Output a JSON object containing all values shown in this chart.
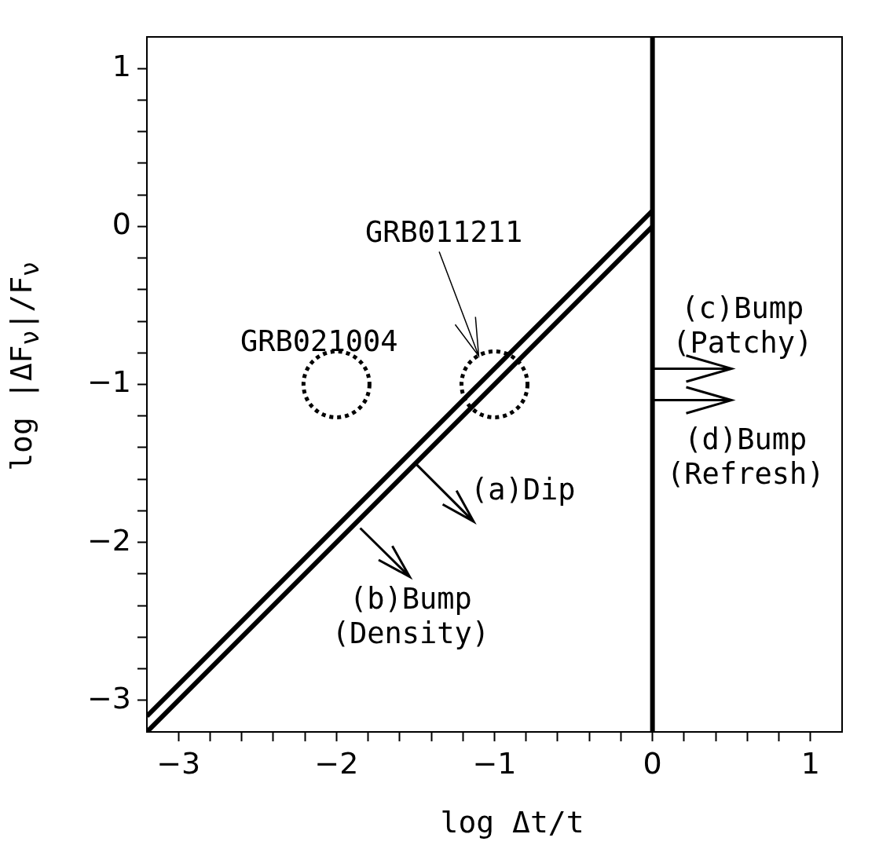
{
  "chart_data": {
    "type": "line",
    "xlabel": "log Δt/t",
    "ylabel": "log |ΔF$_{ν}$|/F$_{ν}$",
    "xlim": [
      -3.2,
      1.2
    ],
    "ylim": [
      -3.2,
      1.2
    ],
    "xticks": [
      -3,
      {
        "value": -2.8,
        "label": null
      },
      {
        "value": -2.6,
        "label": null
      },
      {
        "value": -2.4,
        "label": null
      },
      {
        "value": -2.2,
        "label": null
      },
      -2,
      {
        "value": -1.8,
        "label": null
      },
      {
        "value": -1.6,
        "label": null
      },
      {
        "value": -1.4,
        "label": null
      },
      {
        "value": -1.2,
        "label": null
      },
      -1,
      {
        "value": -0.8,
        "label": null
      },
      {
        "value": -0.6,
        "label": null
      },
      {
        "value": -0.4,
        "label": null
      },
      {
        "value": -0.2,
        "label": null
      },
      0,
      {
        "value": 0.2,
        "label": null
      },
      {
        "value": 0.4,
        "label": null
      },
      {
        "value": 0.6,
        "label": null
      },
      {
        "value": 0.8,
        "label": null
      },
      1
    ],
    "yticks": [
      -3,
      {
        "value": -2.8,
        "label": null
      },
      {
        "value": -2.6,
        "label": null
      },
      {
        "value": -2.4,
        "label": null
      },
      {
        "value": -2.2,
        "label": null
      },
      -2,
      {
        "value": -1.8,
        "label": null
      },
      {
        "value": -1.6,
        "label": null
      },
      {
        "value": -1.4,
        "label": null
      },
      {
        "value": -1.2,
        "label": null
      },
      -1,
      {
        "value": -0.8,
        "label": null
      },
      {
        "value": -0.6,
        "label": null
      },
      {
        "value": -0.4,
        "label": null
      },
      {
        "value": -0.2,
        "label": null
      },
      0,
      {
        "value": 0.2,
        "label": null
      },
      {
        "value": 0.4,
        "label": null
      },
      {
        "value": 0.6,
        "label": null
      },
      {
        "value": 0.8,
        "label": null
      },
      1
    ],
    "series": [
      {
        "color": "#000000",
        "x": [
          -3.2,
          0
        ],
        "values": [
          -3.2,
          0
        ]
      },
      {
        "color": "#000000",
        "x": [
          -3.2,
          0
        ],
        "values": [
          -3.1,
          0.1
        ]
      },
      {
        "type": "scatter",
        "color": "#000000",
        "x": [
          -2,
          -1
        ],
        "values": [
          -1,
          -1
        ],
        "marker": "circle",
        "line_style": "dotted"
      }
    ],
    "ref_lines": [
      {
        "axis": "x",
        "value": 0,
        "color": "#000000"
      }
    ],
    "annotations": [
      {
        "text": "GRB011211",
        "x": -1.1,
        "y": -0.82
      },
      "GRB021004",
      "(c)Bump\n(Patchy)",
      "(d)Bump\n(Refresh)",
      {
        "text": "(a)Dip",
        "x": -1.5,
        "y": -1.5
      },
      {
        "text": "(b)Bump\n(Density)",
        "x": -1.85,
        "y": -1.85
      }
    ],
    "grid": false,
    "legend": false
  }
}
